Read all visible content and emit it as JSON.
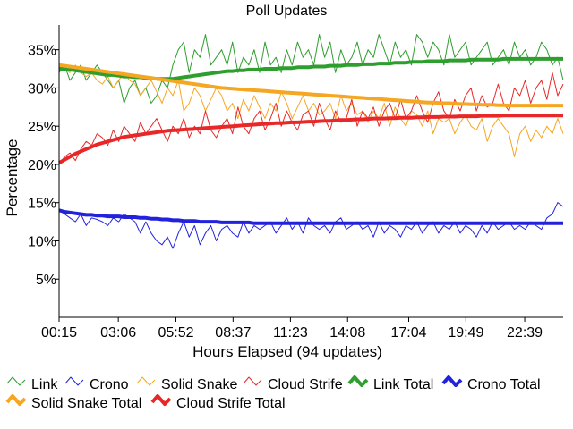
{
  "chart_data": {
    "type": "line",
    "title": "Poll Updates",
    "xlabel": "Hours Elapsed (94 updates)",
    "ylabel": "Percentage",
    "ylim": [
      0,
      38
    ],
    "yticks": [
      5,
      10,
      15,
      20,
      25,
      30,
      35
    ],
    "ytick_labels": [
      "5%",
      "10%",
      "15%",
      "20%",
      "25%",
      "30%",
      "35%"
    ],
    "xlim": [
      0.25,
      24.5
    ],
    "xticks": [
      0.25,
      3.1,
      5.87,
      8.62,
      11.38,
      14.13,
      17.07,
      19.82,
      22.65
    ],
    "xtick_labels": [
      "00:15",
      "03:06",
      "05:52",
      "08:37",
      "11:23",
      "14:08",
      "17:04",
      "19:49",
      "22:39"
    ],
    "grid": false,
    "legend_position": "bottom",
    "series": [
      {
        "name": "Link",
        "color": "#2e9e2e",
        "style": "thin",
        "values": [
          32,
          33,
          31,
          32,
          33,
          31,
          32,
          33,
          32,
          31,
          30,
          31,
          28,
          30,
          31,
          29,
          30,
          28,
          29,
          31,
          30,
          33,
          35,
          36,
          32,
          35,
          34,
          37,
          33,
          34,
          35,
          33,
          36,
          32,
          34,
          33,
          35,
          32,
          36,
          33,
          34,
          32,
          35,
          33,
          36,
          34,
          35,
          33,
          37,
          34,
          36,
          32,
          35,
          33,
          34,
          36,
          33,
          35,
          34,
          37,
          35,
          33,
          36,
          34,
          35,
          33,
          37,
          36,
          34,
          36,
          35,
          33,
          37,
          34,
          35,
          36,
          33,
          34,
          35,
          36,
          33,
          34,
          35,
          33,
          36,
          34,
          35,
          33,
          34,
          36,
          35,
          33,
          34,
          31
        ]
      },
      {
        "name": "Crono",
        "color": "#2222dd",
        "style": "thin",
        "values": [
          14,
          13.5,
          13,
          12.5,
          13.5,
          12,
          13,
          12.8,
          12.5,
          12,
          13,
          12.5,
          13.5,
          13,
          12.5,
          11,
          12.5,
          11,
          10,
          9.5,
          10.5,
          9,
          11,
          12.5,
          10.5,
          12,
          9.5,
          11,
          12,
          10,
          11.5,
          12,
          11,
          10.5,
          12.5,
          11,
          12,
          11.5,
          12,
          12.5,
          11,
          12,
          13,
          11.5,
          12.5,
          11,
          13,
          12,
          11.5,
          12,
          11,
          12.5,
          13,
          11.5,
          12,
          12.5,
          11.5,
          12,
          10.5,
          12.5,
          11,
          12,
          11.5,
          10.5,
          12,
          11.5,
          12.5,
          11,
          12,
          12.5,
          11,
          12,
          11.5,
          12.5,
          11,
          12,
          11.5,
          10.5,
          12,
          11,
          12.5,
          11.5,
          12,
          12.5,
          11.5,
          12,
          11.5,
          12.5,
          12,
          11.5,
          13,
          13.5,
          15,
          14.5
        ]
      },
      {
        "name": "Solid Snake",
        "color": "#f5a623",
        "style": "thin",
        "values": [
          33,
          32.5,
          32,
          33,
          32,
          31.5,
          32,
          31,
          30.5,
          31.5,
          30,
          31,
          32,
          31,
          30.5,
          29,
          30,
          31,
          29.5,
          28,
          30,
          29,
          31,
          27,
          28,
          30,
          29,
          27,
          28.5,
          30,
          29,
          27,
          28,
          26,
          28.5,
          27,
          29,
          27.5,
          26,
          28,
          27,
          29.5,
          28,
          26,
          27.5,
          29,
          27,
          28,
          26.5,
          27,
          28,
          26,
          29,
          27,
          28,
          26.5,
          27,
          25.5,
          27,
          26,
          28,
          25,
          27.5,
          26,
          25,
          27,
          26.5,
          25,
          27,
          24,
          26,
          25.5,
          26,
          24,
          25.5,
          26.5,
          25,
          24.5,
          26,
          23,
          25,
          26,
          25,
          24,
          21,
          24,
          25,
          23,
          24.5,
          23.5,
          25,
          24,
          26,
          24
        ]
      },
      {
        "name": "Cloud Strife",
        "color": "#e82828",
        "style": "thin",
        "values": [
          20,
          21,
          21.5,
          20.5,
          22,
          23,
          22.5,
          24,
          23.5,
          22.5,
          24.5,
          23,
          25,
          24,
          23,
          25.5,
          24,
          25,
          26,
          24.5,
          23,
          25,
          24,
          26,
          23.5,
          25,
          24,
          27,
          24.5,
          23.5,
          25,
          26,
          24,
          27.5,
          25,
          24,
          26,
          27,
          24.5,
          26,
          28,
          25,
          27,
          25.5,
          24.5,
          26.5,
          27,
          25,
          28,
          26,
          24.5,
          27,
          25.5,
          26,
          28.5,
          25,
          27,
          26,
          27.5,
          25,
          27,
          28,
          26,
          28.5,
          26,
          27,
          29,
          27,
          25.5,
          28,
          29.5,
          27,
          26,
          28.5,
          27,
          29,
          30,
          27,
          29,
          27.5,
          28,
          30.5,
          28,
          27,
          30,
          29,
          31,
          28,
          30,
          31,
          28.5,
          32,
          29,
          30.5
        ]
      },
      {
        "name": "Link Total",
        "color": "#2e9e2e",
        "style": "thick",
        "values": [
          32.5,
          32.5,
          32.4,
          32.3,
          32.2,
          32.1,
          32.0,
          31.9,
          31.8,
          31.7,
          31.7,
          31.6,
          31.5,
          31.5,
          31.4,
          31.4,
          31.3,
          31.3,
          31.2,
          31.2,
          31.2,
          31.2,
          31.3,
          31.4,
          31.5,
          31.6,
          31.7,
          31.8,
          31.9,
          32.0,
          32.1,
          32.2,
          32.2,
          32.3,
          32.3,
          32.4,
          32.4,
          32.4,
          32.5,
          32.5,
          32.5,
          32.6,
          32.6,
          32.6,
          32.7,
          32.7,
          32.7,
          32.8,
          32.8,
          32.8,
          32.9,
          32.9,
          32.9,
          33.0,
          33.0,
          33.0,
          33.1,
          33.1,
          33.1,
          33.2,
          33.2,
          33.2,
          33.3,
          33.3,
          33.3,
          33.4,
          33.4,
          33.4,
          33.5,
          33.5,
          33.5,
          33.5,
          33.6,
          33.6,
          33.6,
          33.6,
          33.7,
          33.7,
          33.7,
          33.7,
          33.7,
          33.7,
          33.8,
          33.8,
          33.8,
          33.8,
          33.8,
          33.8,
          33.8,
          33.8,
          33.8,
          33.8,
          33.8,
          33.8
        ]
      },
      {
        "name": "Crono Total",
        "color": "#2222dd",
        "style": "thick",
        "values": [
          14.0,
          13.8,
          13.7,
          13.6,
          13.5,
          13.4,
          13.4,
          13.3,
          13.3,
          13.2,
          13.2,
          13.2,
          13.1,
          13.1,
          13.1,
          13.0,
          13.0,
          12.9,
          12.9,
          12.8,
          12.8,
          12.7,
          12.7,
          12.6,
          12.6,
          12.6,
          12.5,
          12.5,
          12.5,
          12.5,
          12.4,
          12.4,
          12.4,
          12.4,
          12.4,
          12.4,
          12.3,
          12.3,
          12.3,
          12.3,
          12.3,
          12.3,
          12.3,
          12.3,
          12.3,
          12.3,
          12.3,
          12.3,
          12.3,
          12.3,
          12.3,
          12.3,
          12.3,
          12.3,
          12.3,
          12.3,
          12.3,
          12.3,
          12.3,
          12.3,
          12.3,
          12.3,
          12.3,
          12.3,
          12.3,
          12.3,
          12.3,
          12.3,
          12.3,
          12.3,
          12.3,
          12.3,
          12.3,
          12.3,
          12.3,
          12.3,
          12.3,
          12.3,
          12.3,
          12.3,
          12.3,
          12.3,
          12.3,
          12.3,
          12.3,
          12.3,
          12.3,
          12.3,
          12.3,
          12.3,
          12.3,
          12.3,
          12.3,
          12.3
        ]
      },
      {
        "name": "Solid Snake Total",
        "color": "#f5a623",
        "style": "thick",
        "values": [
          33.0,
          32.9,
          32.8,
          32.7,
          32.6,
          32.5,
          32.4,
          32.3,
          32.2,
          32.1,
          32.0,
          31.9,
          31.8,
          31.7,
          31.6,
          31.5,
          31.4,
          31.3,
          31.2,
          31.1,
          31.0,
          30.9,
          30.8,
          30.7,
          30.6,
          30.5,
          30.4,
          30.3,
          30.2,
          30.1,
          30.0,
          29.95,
          29.9,
          29.85,
          29.8,
          29.75,
          29.7,
          29.65,
          29.6,
          29.55,
          29.5,
          29.45,
          29.4,
          29.35,
          29.3,
          29.25,
          29.2,
          29.15,
          29.1,
          29.05,
          29.0,
          28.95,
          28.9,
          28.85,
          28.8,
          28.75,
          28.7,
          28.65,
          28.6,
          28.55,
          28.5,
          28.45,
          28.4,
          28.35,
          28.3,
          28.25,
          28.2,
          28.15,
          28.1,
          28.1,
          28.05,
          28.0,
          28.0,
          27.95,
          27.9,
          27.9,
          27.85,
          27.85,
          27.8,
          27.8,
          27.8,
          27.75,
          27.75,
          27.7,
          27.7,
          27.7,
          27.7,
          27.7,
          27.7,
          27.7,
          27.7,
          27.7,
          27.7,
          27.7
        ]
      },
      {
        "name": "Cloud Strife Total",
        "color": "#e82828",
        "style": "thick",
        "values": [
          20.2,
          20.6,
          21.0,
          21.4,
          21.7,
          22.0,
          22.3,
          22.6,
          22.8,
          23.0,
          23.2,
          23.4,
          23.6,
          23.7,
          23.8,
          23.9,
          24.0,
          24.1,
          24.2,
          24.3,
          24.4,
          24.45,
          24.5,
          24.55,
          24.6,
          24.65,
          24.7,
          24.75,
          24.8,
          24.85,
          24.9,
          24.95,
          25.0,
          25.05,
          25.1,
          25.15,
          25.2,
          25.25,
          25.3,
          25.35,
          25.4,
          25.4,
          25.45,
          25.5,
          25.5,
          25.55,
          25.6,
          25.6,
          25.65,
          25.7,
          25.7,
          25.75,
          25.8,
          25.8,
          25.85,
          25.9,
          25.9,
          25.95,
          26.0,
          26.0,
          26.0,
          26.05,
          26.05,
          26.1,
          26.1,
          26.1,
          26.15,
          26.15,
          26.2,
          26.2,
          26.2,
          26.25,
          26.25,
          26.25,
          26.3,
          26.3,
          26.3,
          26.3,
          26.35,
          26.35,
          26.35,
          26.35,
          26.4,
          26.4,
          26.4,
          26.4,
          26.4,
          26.4,
          26.4,
          26.4,
          26.4,
          26.4,
          26.4,
          26.4
        ]
      }
    ]
  }
}
